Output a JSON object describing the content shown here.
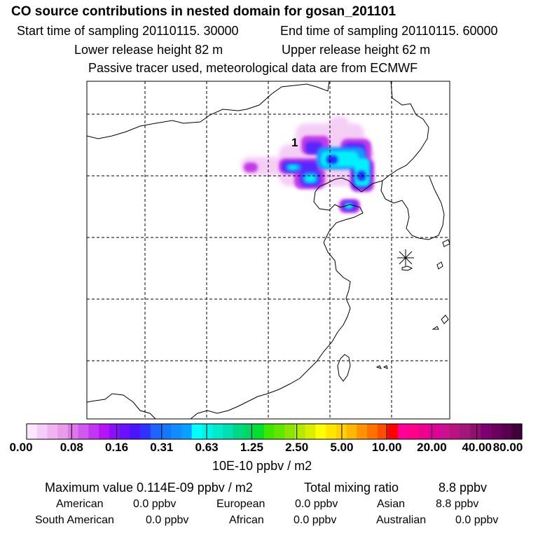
{
  "header": {
    "title": "CO  source contributions in nested domain for gosan_201101",
    "start_time": "Start time of sampling 20110115. 30000",
    "end_time": "End time of sampling 20110115. 60000",
    "lower_release": "Lower release height   82 m",
    "upper_release": "Upper release height   62 m",
    "tracer_note": "Passive tracer used, meteorological data are from ECMWF"
  },
  "map": {
    "source_label": "1",
    "receptor_marker": "station-asterisk"
  },
  "colorbar": {
    "tick_labels": [
      "0.00",
      "0.08",
      "0.16",
      "0.31",
      "0.63",
      "1.25",
      "2.50",
      "5.00",
      "10.00",
      "20.00",
      "40.00",
      "80.00"
    ],
    "unit": "10E-10 ppbv / m2",
    "colors": [
      "#fbe6fb",
      "#f6cdf6",
      "#f0b4f0",
      "#e99ce9",
      "#dc78ea",
      "#cf58ee",
      "#c236f2",
      "#b414f6",
      "#8a10fa",
      "#6a12fd",
      "#4a14ff",
      "#3030ff",
      "#1e64ff",
      "#1478ff",
      "#108cff",
      "#0aa0ff",
      "#00ffff",
      "#00f4e6",
      "#00eacc",
      "#00e0b3",
      "#00d983",
      "#00d766",
      "#00e02e",
      "#40e600",
      "#60e600",
      "#8ae600",
      "#b4ea00",
      "#d7f000",
      "#ffff00",
      "#ffe600",
      "#ffd000",
      "#ffb800",
      "#ff9400",
      "#ff7200",
      "#ff4e00",
      "#ff0000",
      "#ff0099",
      "#ff0088",
      "#f00090",
      "#e00099",
      "#cc1190",
      "#b81480",
      "#a01878",
      "#901070",
      "#7d0070",
      "#6a0060",
      "#58004f",
      "#40003a"
    ]
  },
  "summary": {
    "max_value": "Maximum value  0.114E-09 ppbv / m2",
    "total_label": "Total mixing ratio",
    "total_value": "8.8 ppbv",
    "regions": [
      {
        "name": "American",
        "value": "0.0 ppbv"
      },
      {
        "name": "European",
        "value": "0.0 ppbv"
      },
      {
        "name": "Asian",
        "value": "8.8 ppbv"
      },
      {
        "name": "South American",
        "value": "0.0 ppbv"
      },
      {
        "name": "African",
        "value": "0.0 ppbv"
      },
      {
        "name": "Australian",
        "value": "0.0 ppbv"
      }
    ]
  }
}
